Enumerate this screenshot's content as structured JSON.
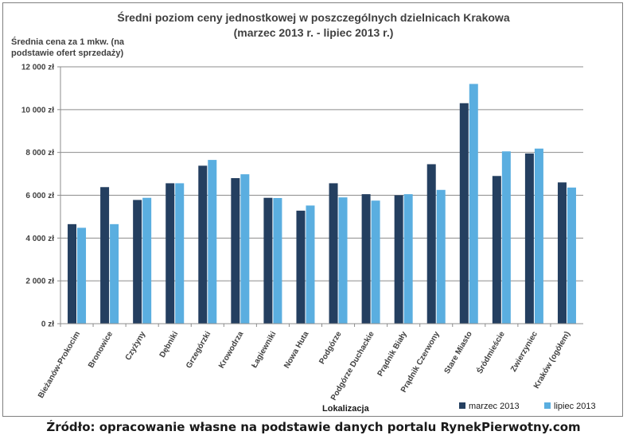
{
  "chart_data": {
    "type": "bar",
    "title": "Średni poziom ceny jednostkowej w poszczególnych dzielnicach Krakowa",
    "subtitle": "(marzec 2013 r. - lipiec 2013 r.)",
    "ylabel_line1": "Średnia cena za 1 mkw. (na",
    "ylabel_line2": "podstawie ofert sprzedaży)",
    "xlabel": "Lokalizacja",
    "ylim": [
      0,
      12000
    ],
    "yticks": [
      "0 zł",
      "2 000 zł",
      "4 000 zł",
      "6 000 zł",
      "8 000 zł",
      "10 000 zł",
      "12 000 zł"
    ],
    "grid": true,
    "legend_position": "bottom-right",
    "categories": [
      "Bieżanów-Prokocim",
      "Bronowice",
      "Czyżyny",
      "Dębniki",
      "Grzegórzki",
      "Krowodrza",
      "Łagiewniki",
      "Nowa Huta",
      "Podgórze",
      "Podgórze Duchackie",
      "Prądnik Biały",
      "Prądnik Czerwony",
      "Stare Miasto",
      "Śródmieście",
      "Zwierzyniec",
      "Kraków (ogółem)"
    ],
    "series": [
      {
        "name": "marzec 2013",
        "color": "#243f60",
        "values": [
          4650,
          6380,
          5780,
          6560,
          7380,
          6800,
          5880,
          5280,
          6560,
          6050,
          6000,
          7450,
          10300,
          6900,
          7950,
          6600
        ]
      },
      {
        "name": "lipiec 2013",
        "color": "#5aaee0",
        "values": [
          4480,
          4650,
          5880,
          6560,
          7650,
          6980,
          5870,
          5520,
          5900,
          5750,
          6050,
          6250,
          11200,
          8050,
          8180,
          6360
        ]
      }
    ]
  },
  "source_text": "Źródło: opracowanie własne na podstawie danych portalu RynekPierwotny.com"
}
